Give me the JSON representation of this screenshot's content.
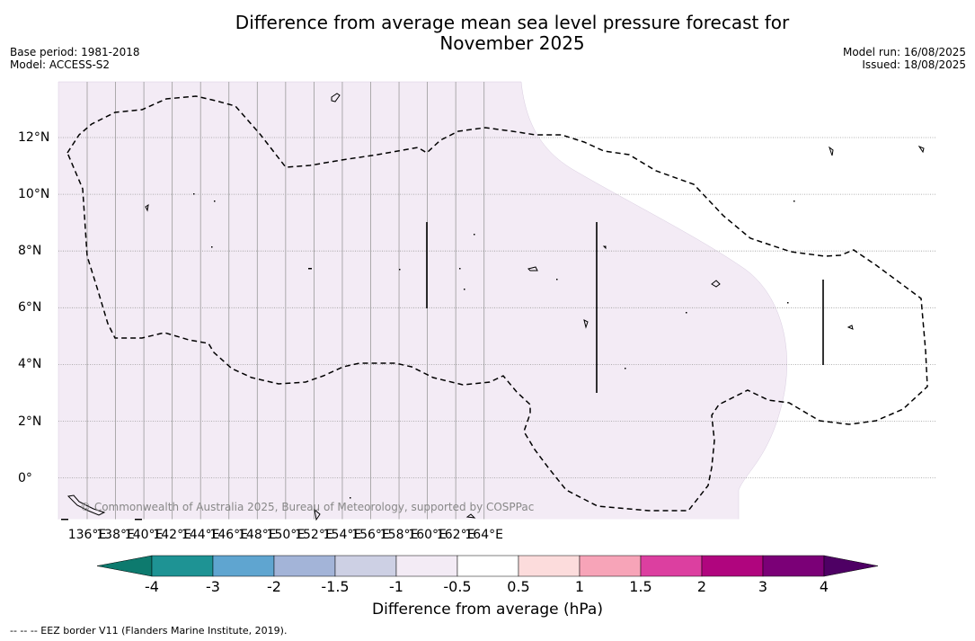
{
  "title_line1": "Difference from average mean sea level pressure forecast for",
  "title_line2": "November 2025",
  "base_period": "Base period: 1981-2018",
  "model": "Model: ACCESS-S2",
  "model_run": "Model run: 16/08/2025",
  "issued": "Issued: 18/08/2025",
  "copyright": "© Commonwealth of Australia 2025, Bureau of Meteorology, supported by COSPPac",
  "map": {
    "lon_ticks": [
      "136°E",
      "138°E",
      "140°E",
      "142°E",
      "144°E",
      "146°E",
      "148°E",
      "150°E",
      "152°E",
      "154°E",
      "156°E",
      "158°E",
      "160°E",
      "162°E",
      "164°E"
    ],
    "lat_ticks": [
      "12°N",
      "10°N",
      "8°N",
      "6°N",
      "4°N",
      "2°N",
      "0°"
    ],
    "fill_color": "#f3ebf5",
    "border_style": "dashed"
  },
  "colorbar": {
    "title": "Difference from average (hPa)",
    "labels": [
      "-4",
      "-3",
      "-2",
      "-1.5",
      "-1",
      "-0.5",
      "0.5",
      "1",
      "1.5",
      "2",
      "3",
      "4"
    ],
    "colors": [
      "#0d7a6e",
      "#1e9394",
      "#5fa5d0",
      "#a3b4d8",
      "#cdd0e4",
      "#f3ebf5",
      "#ffffff",
      "#fcdcdc",
      "#f7a4b8",
      "#dc3fa0",
      "#b0057e",
      "#7b0077",
      "#4e0064"
    ]
  },
  "footnote": "--  --  -- EEZ border V11 (Flanders Marine Institute, 2019)."
}
